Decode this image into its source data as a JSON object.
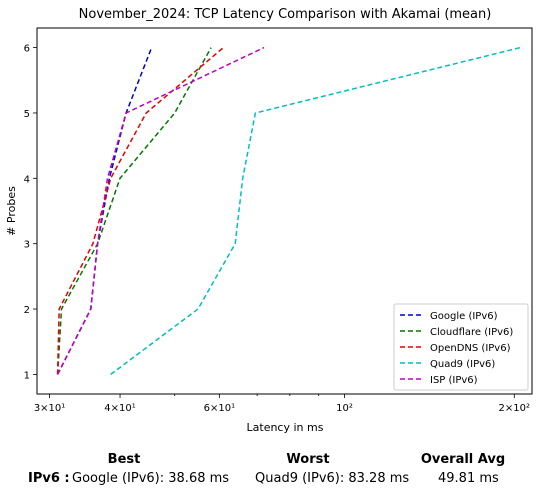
{
  "chart_data": {
    "type": "line",
    "title": "November_2024: TCP Latency Comparison with Akamai (mean)",
    "xlabel": "Latency in ms",
    "ylabel": "# Probes",
    "xscale": "log",
    "xlim": [
      28.5,
      215
    ],
    "ylim": [
      0.7,
      6.3
    ],
    "xticks": [
      {
        "value": 30,
        "label": "3×10¹"
      },
      {
        "value": 40,
        "label": "4×10¹"
      },
      {
        "value": 60,
        "label": "6×10¹"
      },
      {
        "value": 100,
        "label": "10²"
      },
      {
        "value": 200,
        "label": "2×10²"
      }
    ],
    "yticks": [
      1,
      2,
      3,
      4,
      5,
      6
    ],
    "grid": false,
    "legend_position": "bottom-right",
    "series": [
      {
        "name": "Google (IPv6)",
        "color": "#0000cc",
        "x": [
          31.0,
          35.5,
          36.5,
          38.3,
          41.0,
          45.5
        ],
        "y": [
          1,
          2,
          3,
          4,
          5,
          6
        ]
      },
      {
        "name": "Cloudflare (IPv6)",
        "color": "#007700",
        "x": [
          31.0,
          31.5,
          36.5,
          40.0,
          50.0,
          58.0
        ],
        "y": [
          1,
          2,
          3,
          4,
          5,
          6
        ]
      },
      {
        "name": "OpenDNS (IPv6)",
        "color": "#e60000",
        "x": [
          31.0,
          31.2,
          35.8,
          38.5,
          44.5,
          61.0
        ],
        "y": [
          1,
          2,
          3,
          4,
          5,
          6
        ]
      },
      {
        "name": "Quad9 (IPv6)",
        "color": "#00bfbf",
        "x": [
          38.5,
          55.0,
          64.0,
          66.0,
          69.5,
          205.0
        ],
        "y": [
          1,
          2,
          3,
          4,
          5,
          6
        ]
      },
      {
        "name": "ISP (IPv6)",
        "color": "#bf00bf",
        "x": [
          31.0,
          35.5,
          36.5,
          38.0,
          41.0,
          72.0
        ],
        "y": [
          1,
          2,
          3,
          4,
          5,
          6
        ]
      }
    ]
  },
  "summary": {
    "headers": {
      "best": "Best",
      "worst": "Worst",
      "overall": "Overall Avg"
    },
    "row_label": "IPv6 :",
    "best": "Google (IPv6): 38.68 ms",
    "worst": "Quad9 (IPv6): 83.28 ms",
    "overall": "49.81 ms"
  }
}
